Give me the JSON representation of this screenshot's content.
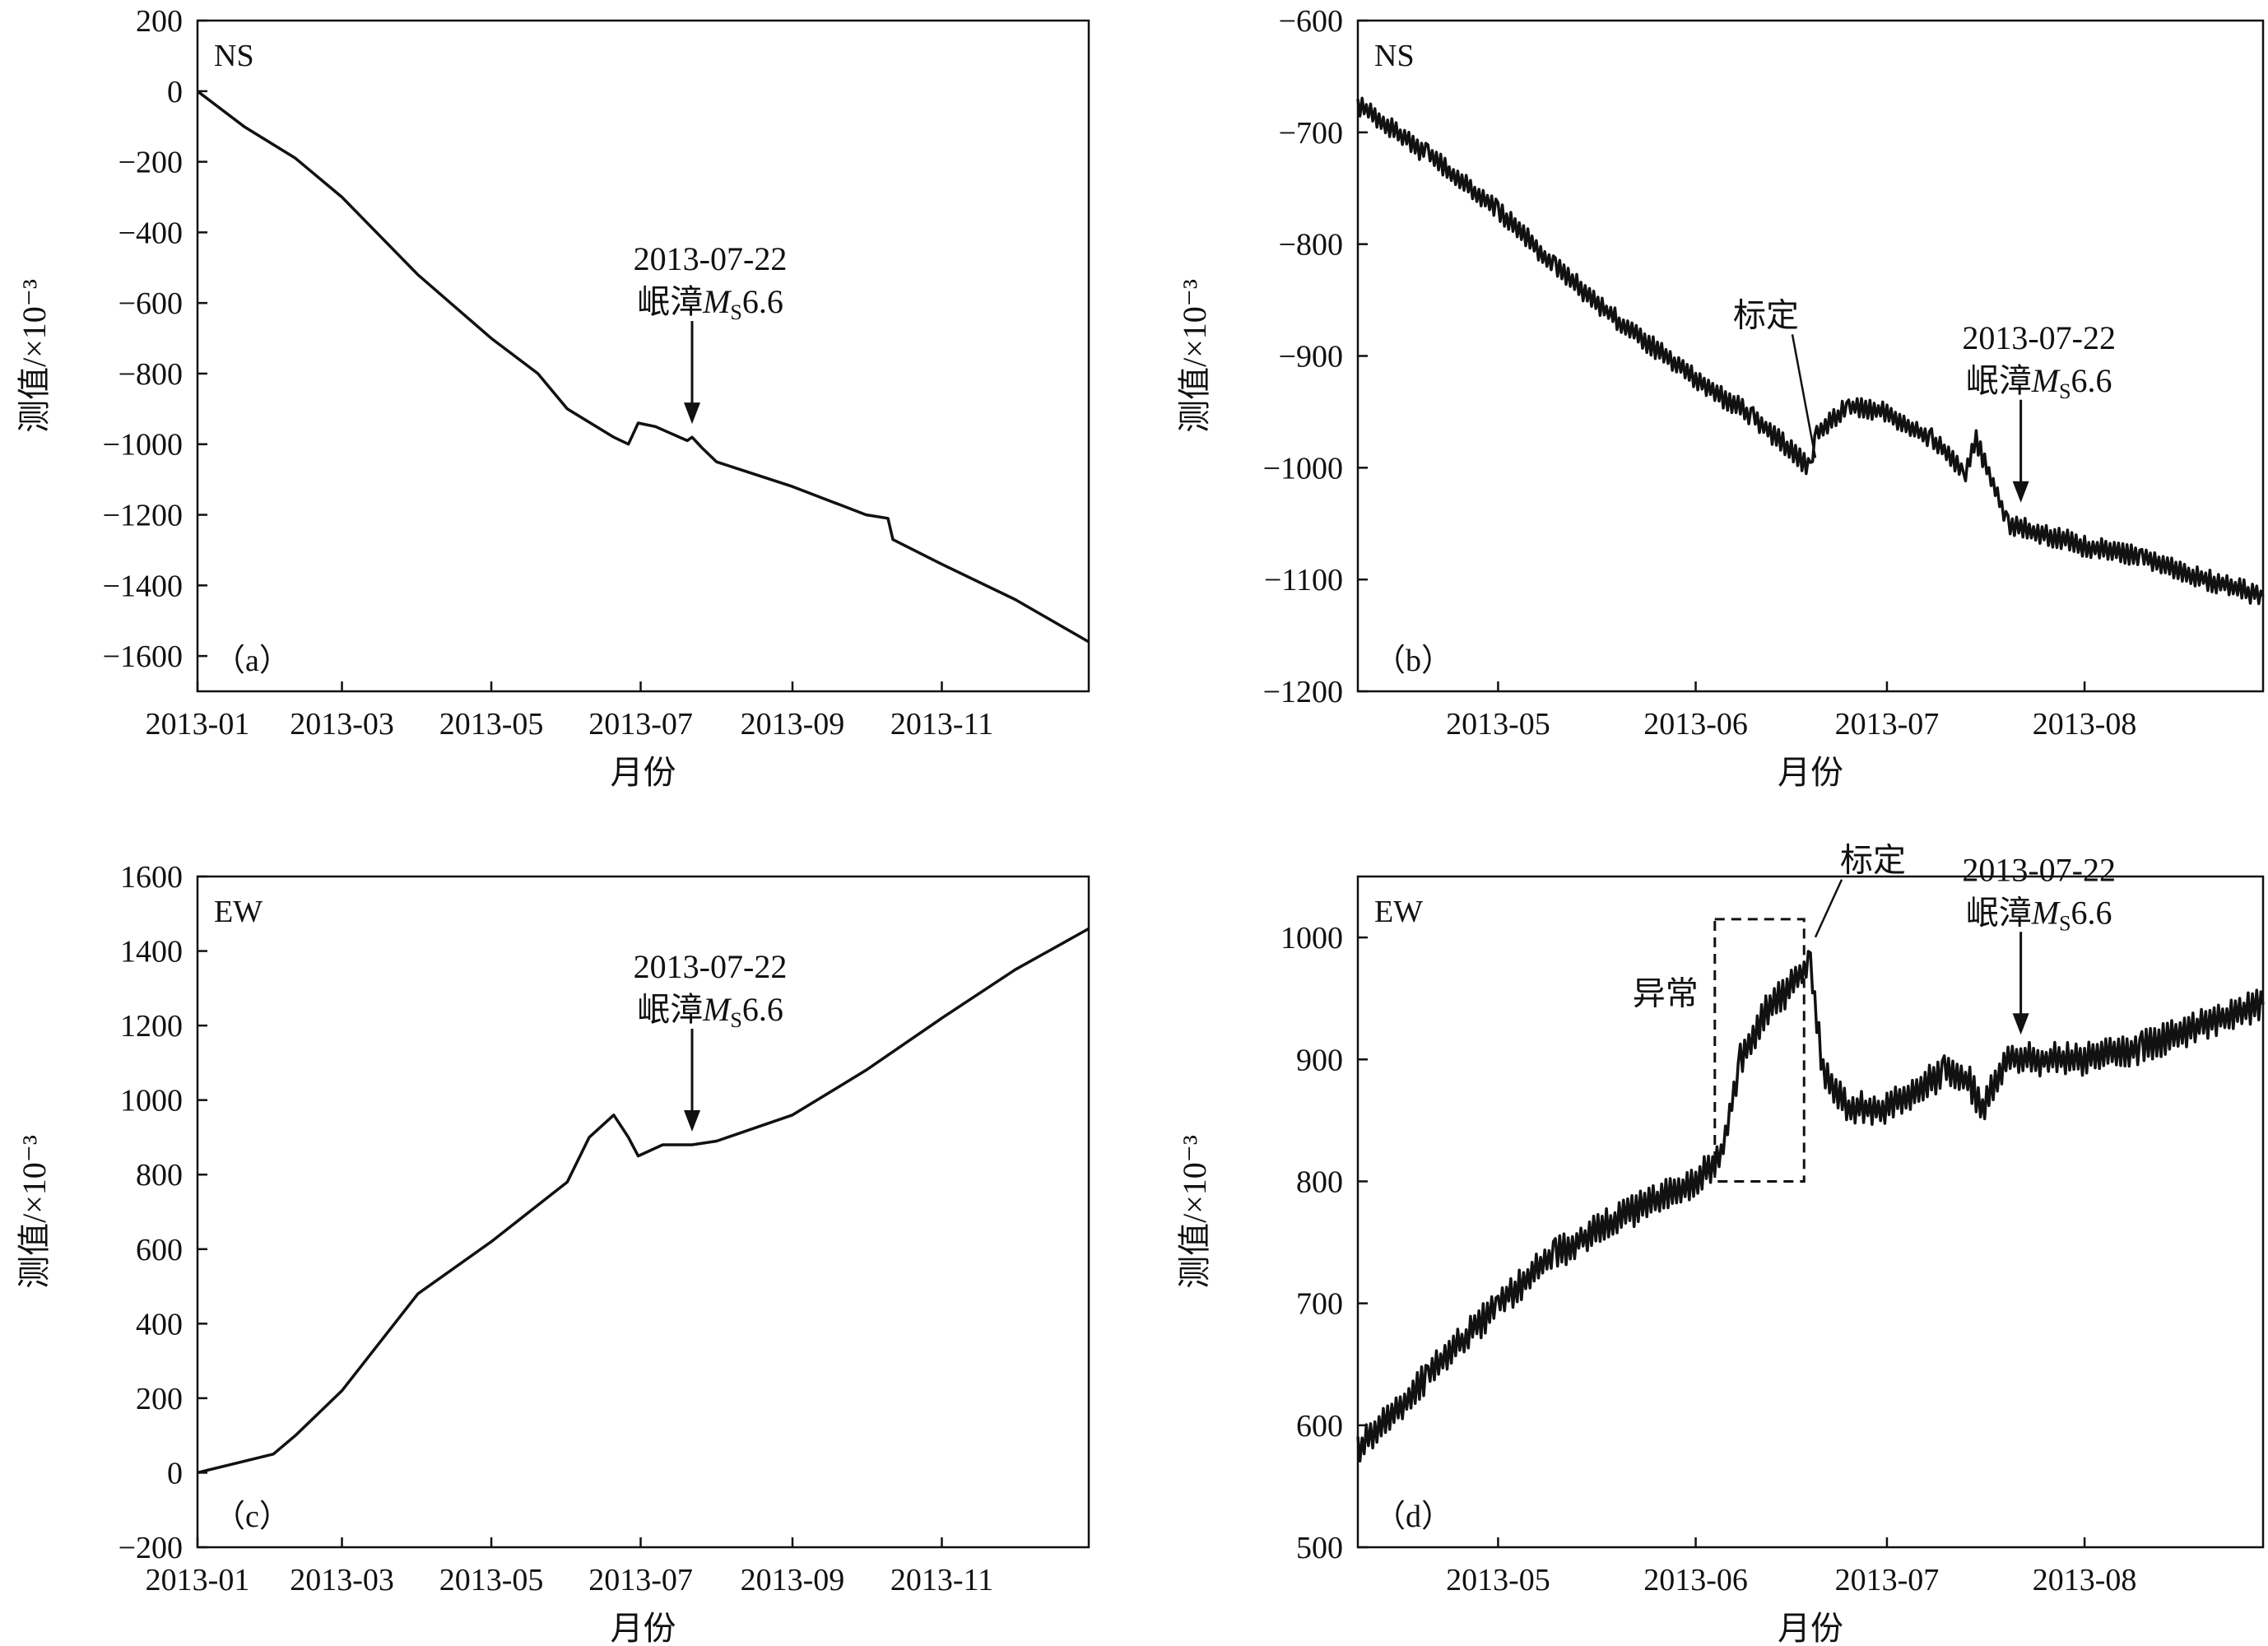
{
  "chart_data": [
    {
      "type": "line",
      "panel_label": "（a）",
      "component": "NS",
      "xlabel": "月份",
      "ylabel": "测值/×10⁻³",
      "x_ticks": [
        "2013-01",
        "2013-03",
        "2013-05",
        "2013-07",
        "2013-09",
        "2013-11"
      ],
      "x_range": [
        "2013-01-01",
        "2013-12-31"
      ],
      "y_ticks": [
        200,
        0,
        -200,
        -400,
        -600,
        -800,
        -1000,
        -1200,
        -1400,
        -1600
      ],
      "ylim": [
        -1700,
        200
      ],
      "series": [
        {
          "x": [
            "2013-01-01",
            "2013-01-20",
            "2013-02-10",
            "2013-03-01",
            "2013-04-01",
            "2013-05-01",
            "2013-05-20",
            "2013-06-01",
            "2013-06-20",
            "2013-06-26",
            "2013-06-30",
            "2013-07-07",
            "2013-07-20",
            "2013-07-22",
            "2013-07-26",
            "2013-08-01",
            "2013-09-01",
            "2013-10-01",
            "2013-10-10",
            "2013-10-12",
            "2013-11-01",
            "2013-12-01",
            "2013-12-31"
          ],
          "y": [
            0,
            -100,
            -190,
            -300,
            -520,
            -700,
            -800,
            -900,
            -980,
            -1000,
            -940,
            -950,
            -990,
            -980,
            -1010,
            -1050,
            -1120,
            -1200,
            -1210,
            -1270,
            -1340,
            -1440,
            -1560
          ]
        }
      ],
      "annotations": [
        {
          "date": "2013-07-22",
          "text": "2013-07-22",
          "text2_prefix": "岷漳",
          "magnitude_symbol": "M",
          "magnitude_sub": "S",
          "magnitude_value": "6.6"
        }
      ]
    },
    {
      "type": "line",
      "panel_label": "（b）",
      "component": "NS",
      "xlabel": "月份",
      "ylabel": "测值/×10⁻³",
      "x_ticks": [
        "2013-05",
        "2013-06",
        "2013-07",
        "2013-08"
      ],
      "x_range": [
        "2013-04-09",
        "2013-08-29"
      ],
      "y_ticks": [
        -600,
        -700,
        -800,
        -900,
        -1000,
        -1100,
        -1200
      ],
      "ylim": [
        -1200,
        -600
      ],
      "series": [
        {
          "x": [
            "2013-04-09",
            "2013-04-20",
            "2013-05-01",
            "2013-05-10",
            "2013-05-20",
            "2013-06-01",
            "2013-06-10",
            "2013-06-14",
            "2013-06-19",
            "2013-06-20",
            "2013-06-25",
            "2013-07-01",
            "2013-07-08",
            "2013-07-12",
            "2013-07-13",
            "2013-07-15",
            "2013-07-20",
            "2013-08-01",
            "2013-08-10",
            "2013-08-20",
            "2013-08-29"
          ],
          "y": [
            -675,
            -720,
            -770,
            -820,
            -870,
            -920,
            -955,
            -975,
            -1000,
            -970,
            -945,
            -950,
            -975,
            -995,
            -1010,
            -975,
            -1050,
            -1070,
            -1080,
            -1100,
            -1115
          ]
        }
      ],
      "annotations": [
        {
          "date": "2013-07-22",
          "text": "2013-07-22",
          "text2_prefix": "岷漳",
          "magnitude_symbol": "M",
          "magnitude_sub": "S",
          "magnitude_value": "6.6"
        },
        {
          "date": "2013-06-19",
          "text": "标定"
        }
      ]
    },
    {
      "type": "line",
      "panel_label": "（c）",
      "component": "EW",
      "xlabel": "月份",
      "ylabel": "测值/×10⁻³",
      "x_ticks": [
        "2013-01",
        "2013-03",
        "2013-05",
        "2013-07",
        "2013-09",
        "2013-11"
      ],
      "x_range": [
        "2013-01-01",
        "2013-12-31"
      ],
      "y_ticks": [
        1600,
        1400,
        1200,
        1000,
        800,
        600,
        400,
        200,
        0,
        -200
      ],
      "ylim": [
        -200,
        1600
      ],
      "series": [
        {
          "x": [
            "2013-01-01",
            "2013-02-01",
            "2013-02-10",
            "2013-03-01",
            "2013-04-01",
            "2013-05-01",
            "2013-06-01",
            "2013-06-10",
            "2013-06-20",
            "2013-06-26",
            "2013-06-30",
            "2013-07-10",
            "2013-07-22",
            "2013-08-01",
            "2013-09-01",
            "2013-10-01",
            "2013-11-01",
            "2013-12-01",
            "2013-12-31"
          ],
          "y": [
            0,
            50,
            100,
            220,
            480,
            620,
            780,
            900,
            960,
            900,
            850,
            880,
            880,
            890,
            960,
            1080,
            1220,
            1350,
            1460
          ]
        }
      ],
      "annotations": [
        {
          "date": "2013-07-22",
          "text": "2013-07-22",
          "text2_prefix": "岷漳",
          "magnitude_symbol": "M",
          "magnitude_sub": "S",
          "magnitude_value": "6.6"
        }
      ]
    },
    {
      "type": "line",
      "panel_label": "（d）",
      "component": "EW",
      "xlabel": "月份",
      "ylabel": "测值/×10⁻³",
      "x_ticks": [
        "2013-05",
        "2013-06",
        "2013-07",
        "2013-08"
      ],
      "x_range": [
        "2013-04-09",
        "2013-08-29"
      ],
      "y_ticks": [
        1000,
        900,
        800,
        700,
        600,
        500
      ],
      "ylim": [
        500,
        1050
      ],
      "series": [
        {
          "x": [
            "2013-04-09",
            "2013-04-20",
            "2013-05-01",
            "2013-05-10",
            "2013-05-20",
            "2013-06-01",
            "2013-06-05",
            "2013-06-08",
            "2013-06-12",
            "2013-06-16",
            "2013-06-19",
            "2013-06-21",
            "2013-06-25",
            "2013-07-01",
            "2013-07-10",
            "2013-07-14",
            "2013-07-16",
            "2013-07-20",
            "2013-08-01",
            "2013-08-10",
            "2013-08-20",
            "2013-08-29"
          ],
          "y": [
            580,
            640,
            700,
            740,
            770,
            800,
            820,
            900,
            940,
            960,
            980,
            890,
            860,
            860,
            890,
            880,
            860,
            900,
            900,
            910,
            930,
            945
          ]
        }
      ],
      "annotations": [
        {
          "date": "2013-07-22",
          "text": "2013-07-22",
          "text2_prefix": "岷漳",
          "magnitude_symbol": "M",
          "magnitude_sub": "S",
          "magnitude_value": "6.6"
        },
        {
          "date": "2013-06-19",
          "text": "标定"
        },
        {
          "box_from": "2013-06-04",
          "box_to": "2013-06-18",
          "box_y": [
            800,
            1015
          ],
          "text": "异常"
        }
      ]
    }
  ]
}
